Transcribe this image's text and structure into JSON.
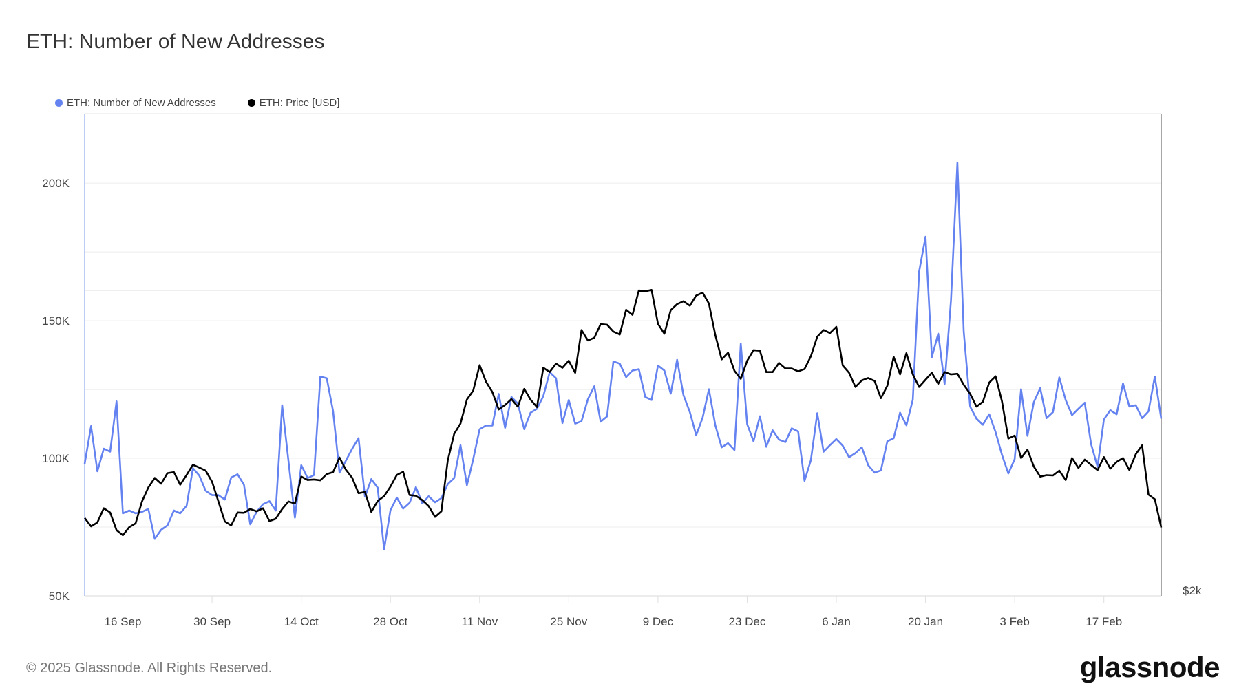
{
  "title": "ETH: Number of New Addresses",
  "legend": [
    {
      "label": "ETH: Number of New Addresses",
      "color": "#6482f0"
    },
    {
      "label": "ETH: Price [USD]",
      "color": "#000000"
    }
  ],
  "footer": "© 2025 Glassnode. All Rights Reserved.",
  "logo": "glassnode",
  "chart_data": {
    "type": "line",
    "title": "ETH: Number of New Addresses",
    "x_start": "2024-09-10",
    "x_end": "2025-02-26",
    "frequency": "daily",
    "x_ticks": [
      "16 Sep",
      "30 Sep",
      "14 Oct",
      "28 Oct",
      "11 Nov",
      "25 Nov",
      "9 Dec",
      "23 Dec",
      "6 Jan",
      "20 Jan",
      "3 Feb",
      "17 Feb"
    ],
    "y_left": {
      "ticks": [
        "50K",
        "100K",
        "150K",
        "200K"
      ],
      "tick_values": [
        50000,
        100000,
        150000,
        200000
      ],
      "range": [
        50000,
        225300
      ],
      "scale": "linear"
    },
    "y_right": {
      "ticks": [
        "$2k"
      ],
      "tick_values": [
        2000
      ],
      "range": [
        2000,
        5980
      ],
      "scale": "log"
    },
    "grid": true,
    "legend_position": "top-left",
    "series": [
      {
        "name": "ETH: Number of New Addresses",
        "axis": "left",
        "color": "#6482f0",
        "values": [
          98000,
          111700,
          95300,
          103500,
          102400,
          120700,
          80000,
          81000,
          80000,
          80500,
          81600,
          70700,
          74000,
          75600,
          81000,
          80000,
          82700,
          96400,
          93700,
          88200,
          86600,
          86600,
          85000,
          93000,
          94200,
          90400,
          76000,
          80600,
          83300,
          84400,
          81000,
          119300,
          99000,
          78400,
          97500,
          92800,
          93900,
          129700,
          129100,
          117100,
          94800,
          99100,
          103500,
          107300,
          86000,
          92400,
          89300,
          66900,
          81100,
          85700,
          81700,
          83800,
          89500,
          83600,
          86200,
          84000,
          85500,
          90600,
          92800,
          104800,
          90200,
          99700,
          110600,
          111900,
          111900,
          123400,
          111100,
          122300,
          119900,
          110600,
          116600,
          118000,
          122600,
          131300,
          129100,
          112800,
          121200,
          112600,
          113500,
          121500,
          126200,
          113300,
          115200,
          135200,
          134400,
          129500,
          131900,
          132400,
          122300,
          121200,
          133700,
          131900,
          123500,
          135800,
          123000,
          116800,
          108400,
          114700,
          125100,
          112000,
          104000,
          105500,
          103000,
          141700,
          112400,
          106200,
          115300,
          104200,
          110200,
          106800,
          105900,
          110900,
          109800,
          91800,
          99300,
          116400,
          102400,
          104800,
          107000,
          104600,
          100400,
          101900,
          104000,
          97500,
          94800,
          95600,
          106200,
          107300,
          116600,
          112000,
          121300,
          167900,
          180500,
          136800,
          145300,
          127000,
          157500,
          207400,
          146000,
          118800,
          114400,
          112200,
          116000,
          109500,
          101300,
          94500,
          99700,
          125100,
          108200,
          120400,
          125500,
          114600,
          116800,
          129400,
          121200,
          115700,
          118000,
          120200,
          105100,
          96900,
          114100,
          117500,
          116000,
          127200,
          118800,
          119300,
          114600,
          117100,
          129700,
          114400
        ]
      },
      {
        "name": "ETH: Price [USD]",
        "axis": "right",
        "color": "#000000",
        "values": [
          2387,
          2342,
          2363,
          2440,
          2417,
          2322,
          2295,
          2338,
          2358,
          2478,
          2558,
          2614,
          2580,
          2643,
          2649,
          2574,
          2632,
          2694,
          2676,
          2658,
          2592,
          2478,
          2368,
          2347,
          2417,
          2415,
          2436,
          2423,
          2440,
          2370,
          2383,
          2436,
          2478,
          2466,
          2622,
          2602,
          2605,
          2600,
          2637,
          2649,
          2738,
          2664,
          2614,
          2525,
          2532,
          2420,
          2481,
          2508,
          2563,
          2632,
          2651,
          2515,
          2510,
          2486,
          2452,
          2393,
          2423,
          2720,
          2889,
          2958,
          3124,
          3188,
          3377,
          3253,
          3177,
          3054,
          3085,
          3127,
          3073,
          3200,
          3123,
          3070,
          3357,
          3325,
          3389,
          3357,
          3411,
          3319,
          3657,
          3572,
          3594,
          3707,
          3702,
          3645,
          3621,
          3830,
          3786,
          4002,
          3994,
          4007,
          3709,
          3627,
          3826,
          3879,
          3905,
          3865,
          3955,
          3982,
          3884,
          3616,
          3422,
          3474,
          3334,
          3274,
          3411,
          3494,
          3490,
          3325,
          3325,
          3394,
          3352,
          3352,
          3330,
          3348,
          3446,
          3602,
          3657,
          3632,
          3684,
          3375,
          3319,
          3214,
          3262,
          3280,
          3258,
          3133,
          3223,
          3441,
          3307,
          3470,
          3307,
          3214,
          3267,
          3319,
          3237,
          3325,
          3307,
          3312,
          3230,
          3165,
          3074,
          3108,
          3246,
          3293,
          3112,
          2859,
          2878,
          2735,
          2787,
          2683,
          2622,
          2631,
          2629,
          2658,
          2602,
          2735,
          2674,
          2725,
          2692,
          2661,
          2741,
          2670,
          2711,
          2735,
          2661,
          2759,
          2815,
          2517,
          2491,
          2336
        ]
      }
    ]
  }
}
